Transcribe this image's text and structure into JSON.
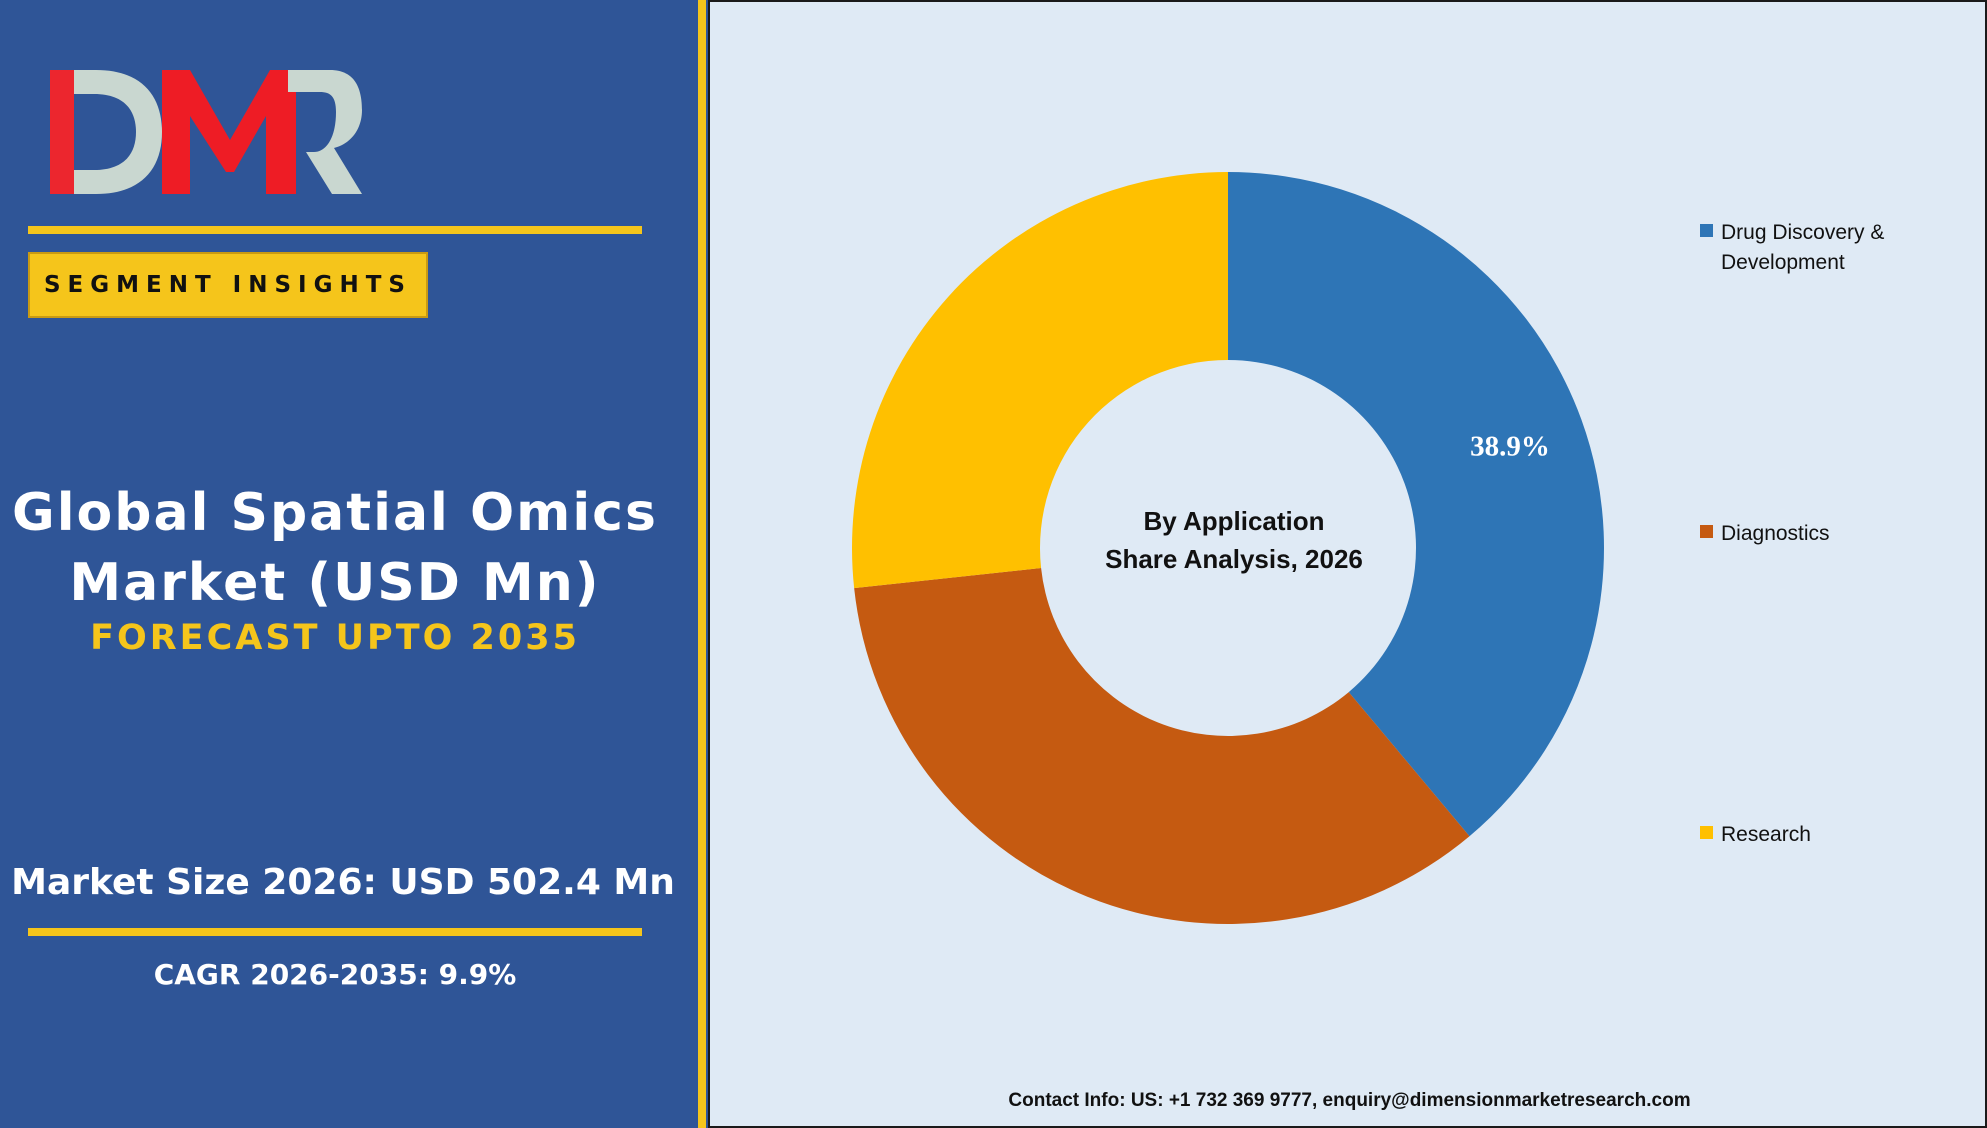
{
  "logo": {
    "text": "DMR"
  },
  "badge": "SEGMENT INSIGHTS",
  "title_line1": "Global Spatial Omics",
  "title_line2": "Market (USD Mn)",
  "forecast": "FORECAST UPTO 2035",
  "market_size": "Market Size 2026: USD 502.4 Mn",
  "cagr": "CAGR 2026-2035: 9.9%",
  "contact": "Contact Info: US: +1 732 369 9777, enquiry@dimensionmarketresearch.com",
  "colors": {
    "panel": "#2f5597",
    "accent": "#f5c51b",
    "chart_bg": "#dfeaf5"
  },
  "chart_data": {
    "type": "pie",
    "variant": "donut",
    "center_line1": "By Application",
    "center_line2": "Share Analysis, 2026",
    "legend_position": "right",
    "categories": [
      "Drug Discovery & Development",
      "Diagnostics",
      "Research"
    ],
    "values": [
      38.9,
      34.4,
      26.7
    ],
    "data_labels": [
      "38.9%",
      "",
      ""
    ],
    "colors": [
      "#2e75b6",
      "#c55a11",
      "#ffc000"
    ]
  }
}
